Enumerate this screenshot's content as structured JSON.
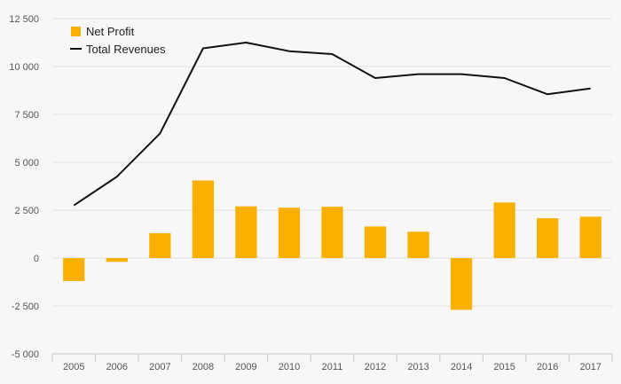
{
  "chart_data": {
    "type": "bar",
    "categories": [
      "2005",
      "2006",
      "2007",
      "2008",
      "2009",
      "2010",
      "2011",
      "2012",
      "2013",
      "2014",
      "2015",
      "2016",
      "2017"
    ],
    "series": [
      {
        "name": "Net Profit",
        "type": "bar",
        "color": "#f9b000",
        "values": [
          -1200,
          -200,
          1300,
          4050,
          2700,
          2630,
          2680,
          1650,
          1380,
          -2700,
          2900,
          2080,
          2160
        ]
      },
      {
        "name": "Total Revenues",
        "type": "line",
        "color": "#111111",
        "values": [
          2750,
          4250,
          6500,
          10950,
          11250,
          10800,
          10650,
          9400,
          9600,
          9600,
          9400,
          8550,
          8850
        ]
      }
    ],
    "ylim": [
      -5000,
      12500
    ],
    "yticks": [
      -5000,
      -2500,
      0,
      2500,
      5000,
      7500,
      10000,
      12500
    ],
    "ytick_labels": [
      "-5 000",
      "-2 500",
      "0",
      "2 500",
      "5 000",
      "7 500",
      "10 000",
      "12 500"
    ],
    "grid": true,
    "legend_position": "top-left"
  }
}
